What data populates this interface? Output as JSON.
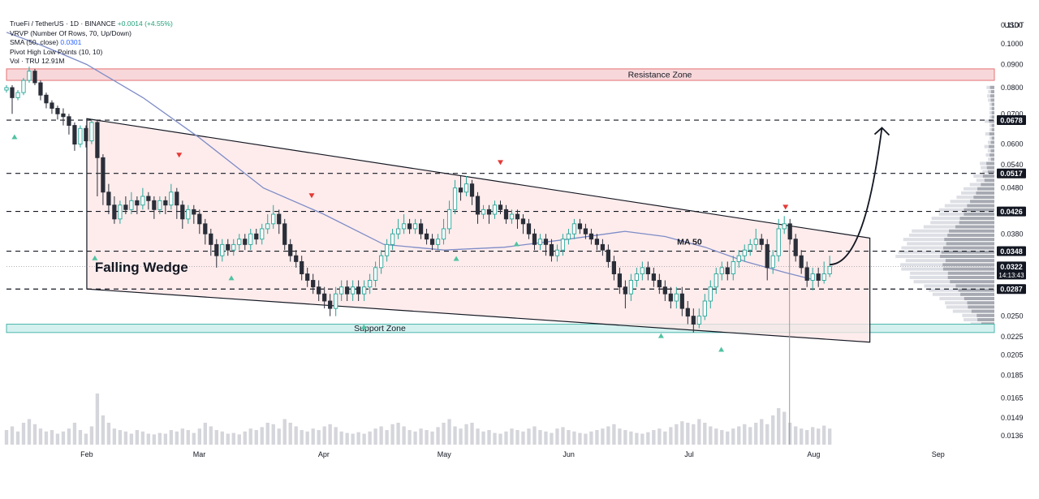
{
  "legend": {
    "symbol": "TrueFi / TetherUS · 1D · BINANCE",
    "change": "+0.0014 (+4.55%)",
    "vrvp": "VRVP (Number Of Rows, 70, Up/Down)",
    "sma_label": "SMA (50, close)",
    "sma_value": "0.0301",
    "pivot": "Pivot High Low Points (10, 10)",
    "vol_label": "Vol · TRU",
    "vol_value": "12.91M"
  },
  "colors": {
    "bull": "#26a69a",
    "bear": "#2a2e39",
    "ma": "#7e8cc7",
    "wedge_fill": "#fde6e6",
    "resistance_fill": "#f8d7da",
    "support_fill": "#d4f1ef",
    "pivot_up": "#4fc3a1",
    "pivot_down": "#e53935",
    "price_label_bg": "#131722"
  },
  "chart_data": {
    "type": "candlestick",
    "currency": "USDT",
    "y_ticks": [
      "0.1100",
      "0.1000",
      "0.0900",
      "0.0800",
      "0.0700",
      "0.0600",
      "0.0540",
      "0.0480",
      "0.0380",
      "0.0250",
      "0.0225",
      "0.0205",
      "0.0185",
      "0.0165",
      "0.0149",
      "0.0136"
    ],
    "x_ticks": [
      "Feb",
      "Mar",
      "Apr",
      "May",
      "Jun",
      "Jul",
      "Aug",
      "Sep"
    ],
    "x_tick_days": [
      31,
      59,
      90,
      120,
      151,
      181,
      212,
      243
    ],
    "x_range_days": [
      11,
      257
    ],
    "price_labels": [
      {
        "price": 0.0678,
        "text": "0.0678"
      },
      {
        "price": 0.0517,
        "text": "0.0517"
      },
      {
        "price": 0.0426,
        "text": "0.0426"
      },
      {
        "price": 0.0348,
        "text": "0.0348"
      },
      {
        "price": 0.0322,
        "text": "0.0322",
        "sub": "14:13:43",
        "current": true
      },
      {
        "price": 0.0287,
        "text": "0.0287"
      }
    ],
    "dashed_levels": [
      0.0678,
      0.0517,
      0.0426,
      0.0348,
      0.0287
    ],
    "zones": [
      {
        "label": "Resistance Zone",
        "top": 0.088,
        "bottom": 0.083
      },
      {
        "label": "Support Zone",
        "top": 0.024,
        "bottom": 0.023
      }
    ],
    "annotations": {
      "pattern": "Falling Wedge",
      "ma_label": "MA 50"
    },
    "wedge": {
      "upper_start": {
        "day": 31,
        "price": 0.0683
      },
      "upper_end": {
        "day": 226,
        "price": 0.0372
      },
      "lower_start": {
        "day": 31,
        "price": 0.0287
      },
      "lower_end": {
        "day": 226,
        "price": 0.0219
      }
    },
    "projection": {
      "start": {
        "day": 216,
        "price": 0.0325
      },
      "end": {
        "day": 229,
        "price": 0.0652
      }
    },
    "pivots": [
      {
        "day": 13,
        "price": 0.0652,
        "dir": "low"
      },
      {
        "day": 33,
        "price": 0.0352,
        "dir": "low"
      },
      {
        "day": 54,
        "price": 0.0542,
        "dir": "high"
      },
      {
        "day": 67,
        "price": 0.0318,
        "dir": "low"
      },
      {
        "day": 87,
        "price": 0.0441,
        "dir": "high"
      },
      {
        "day": 100,
        "price": 0.0248,
        "dir": "low"
      },
      {
        "day": 123,
        "price": 0.0351,
        "dir": "low"
      },
      {
        "day": 134,
        "price": 0.0522,
        "dir": "high"
      },
      {
        "day": 138,
        "price": 0.0378,
        "dir": "low"
      },
      {
        "day": 174,
        "price": 0.0237,
        "dir": "low"
      },
      {
        "day": 189,
        "price": 0.0221,
        "dir": "low"
      },
      {
        "day": 205,
        "price": 0.0416,
        "dir": "high"
      }
    ],
    "candles_open_close_high_low": [
      [
        0.079,
        0.08,
        0.081,
        0.078
      ],
      [
        0.08,
        0.076,
        0.081,
        0.07
      ],
      [
        0.076,
        0.078,
        0.079,
        0.075
      ],
      [
        0.078,
        0.083,
        0.084,
        0.077
      ],
      [
        0.083,
        0.087,
        0.089,
        0.082
      ],
      [
        0.087,
        0.082,
        0.088,
        0.081
      ],
      [
        0.082,
        0.077,
        0.083,
        0.075
      ],
      [
        0.077,
        0.074,
        0.078,
        0.072
      ],
      [
        0.074,
        0.072,
        0.075,
        0.07
      ],
      [
        0.072,
        0.07,
        0.073,
        0.068
      ],
      [
        0.07,
        0.069,
        0.072,
        0.066
      ],
      [
        0.069,
        0.066,
        0.07,
        0.063
      ],
      [
        0.066,
        0.06,
        0.067,
        0.058
      ],
      [
        0.06,
        0.065,
        0.066,
        0.059
      ],
      [
        0.065,
        0.061,
        0.066,
        0.059
      ],
      [
        0.061,
        0.067,
        0.068,
        0.06
      ],
      [
        0.067,
        0.056,
        0.068,
        0.046
      ],
      [
        0.056,
        0.047,
        0.057,
        0.044
      ],
      [
        0.047,
        0.044,
        0.049,
        0.042
      ],
      [
        0.044,
        0.041,
        0.046,
        0.04
      ],
      [
        0.041,
        0.044,
        0.045,
        0.04
      ],
      [
        0.044,
        0.043,
        0.046,
        0.042
      ],
      [
        0.043,
        0.045,
        0.047,
        0.042
      ],
      [
        0.045,
        0.044,
        0.046,
        0.042
      ],
      [
        0.044,
        0.046,
        0.048,
        0.043
      ],
      [
        0.046,
        0.045,
        0.047,
        0.043
      ],
      [
        0.045,
        0.043,
        0.046,
        0.041
      ],
      [
        0.043,
        0.045,
        0.046,
        0.042
      ],
      [
        0.045,
        0.044,
        0.046,
        0.042
      ],
      [
        0.044,
        0.047,
        0.049,
        0.043
      ],
      [
        0.047,
        0.044,
        0.048,
        0.041
      ],
      [
        0.044,
        0.041,
        0.045,
        0.039
      ],
      [
        0.041,
        0.043,
        0.044,
        0.04
      ],
      [
        0.043,
        0.042,
        0.044,
        0.04
      ],
      [
        0.042,
        0.04,
        0.043,
        0.038
      ],
      [
        0.04,
        0.038,
        0.041,
        0.036
      ],
      [
        0.038,
        0.036,
        0.039,
        0.034
      ],
      [
        0.036,
        0.034,
        0.037,
        0.032
      ],
      [
        0.034,
        0.036,
        0.037,
        0.033
      ],
      [
        0.036,
        0.035,
        0.037,
        0.034
      ],
      [
        0.035,
        0.036,
        0.037,
        0.034
      ],
      [
        0.036,
        0.037,
        0.038,
        0.035
      ],
      [
        0.037,
        0.036,
        0.038,
        0.035
      ],
      [
        0.036,
        0.038,
        0.039,
        0.035
      ],
      [
        0.038,
        0.037,
        0.039,
        0.036
      ],
      [
        0.037,
        0.039,
        0.04,
        0.036
      ],
      [
        0.039,
        0.04,
        0.042,
        0.038
      ],
      [
        0.04,
        0.042,
        0.044,
        0.039
      ],
      [
        0.042,
        0.04,
        0.043,
        0.038
      ],
      [
        0.04,
        0.036,
        0.041,
        0.035
      ],
      [
        0.036,
        0.034,
        0.037,
        0.033
      ],
      [
        0.034,
        0.033,
        0.035,
        0.032
      ],
      [
        0.033,
        0.031,
        0.034,
        0.03
      ],
      [
        0.031,
        0.03,
        0.032,
        0.029
      ],
      [
        0.03,
        0.029,
        0.031,
        0.028
      ],
      [
        0.029,
        0.028,
        0.03,
        0.027
      ],
      [
        0.028,
        0.027,
        0.029,
        0.026
      ],
      [
        0.027,
        0.026,
        0.028,
        0.025
      ],
      [
        0.026,
        0.028,
        0.029,
        0.025
      ],
      [
        0.028,
        0.029,
        0.03,
        0.027
      ],
      [
        0.029,
        0.028,
        0.03,
        0.027
      ],
      [
        0.028,
        0.029,
        0.03,
        0.027
      ],
      [
        0.029,
        0.028,
        0.03,
        0.027
      ],
      [
        0.028,
        0.029,
        0.03,
        0.027
      ],
      [
        0.029,
        0.03,
        0.031,
        0.028
      ],
      [
        0.03,
        0.032,
        0.033,
        0.029
      ],
      [
        0.032,
        0.034,
        0.035,
        0.031
      ],
      [
        0.034,
        0.036,
        0.037,
        0.033
      ],
      [
        0.036,
        0.038,
        0.039,
        0.035
      ],
      [
        0.038,
        0.039,
        0.041,
        0.037
      ],
      [
        0.039,
        0.04,
        0.042,
        0.038
      ],
      [
        0.04,
        0.039,
        0.041,
        0.038
      ],
      [
        0.039,
        0.04,
        0.041,
        0.038
      ],
      [
        0.04,
        0.038,
        0.041,
        0.037
      ],
      [
        0.038,
        0.037,
        0.039,
        0.036
      ],
      [
        0.037,
        0.036,
        0.038,
        0.035
      ],
      [
        0.036,
        0.037,
        0.038,
        0.035
      ],
      [
        0.037,
        0.039,
        0.041,
        0.036
      ],
      [
        0.039,
        0.043,
        0.045,
        0.038
      ],
      [
        0.043,
        0.048,
        0.05,
        0.042
      ],
      [
        0.048,
        0.047,
        0.051,
        0.045
      ],
      [
        0.047,
        0.049,
        0.051,
        0.046
      ],
      [
        0.049,
        0.046,
        0.05,
        0.044
      ],
      [
        0.046,
        0.042,
        0.047,
        0.04
      ],
      [
        0.042,
        0.043,
        0.044,
        0.041
      ],
      [
        0.043,
        0.042,
        0.044,
        0.04
      ],
      [
        0.042,
        0.044,
        0.045,
        0.041
      ],
      [
        0.044,
        0.043,
        0.045,
        0.042
      ],
      [
        0.043,
        0.041,
        0.044,
        0.04
      ],
      [
        0.041,
        0.042,
        0.043,
        0.04
      ],
      [
        0.042,
        0.041,
        0.043,
        0.039
      ],
      [
        0.041,
        0.04,
        0.042,
        0.038
      ],
      [
        0.04,
        0.038,
        0.041,
        0.037
      ],
      [
        0.038,
        0.036,
        0.039,
        0.035
      ],
      [
        0.036,
        0.037,
        0.038,
        0.035
      ],
      [
        0.037,
        0.036,
        0.038,
        0.034
      ],
      [
        0.036,
        0.034,
        0.037,
        0.033
      ],
      [
        0.034,
        0.035,
        0.036,
        0.033
      ],
      [
        0.035,
        0.037,
        0.038,
        0.034
      ],
      [
        0.037,
        0.038,
        0.039,
        0.036
      ],
      [
        0.038,
        0.04,
        0.041,
        0.037
      ],
      [
        0.04,
        0.039,
        0.041,
        0.038
      ],
      [
        0.039,
        0.038,
        0.04,
        0.037
      ],
      [
        0.038,
        0.037,
        0.039,
        0.036
      ],
      [
        0.037,
        0.036,
        0.038,
        0.035
      ],
      [
        0.036,
        0.035,
        0.037,
        0.034
      ],
      [
        0.035,
        0.033,
        0.036,
        0.032
      ],
      [
        0.033,
        0.031,
        0.034,
        0.03
      ],
      [
        0.031,
        0.029,
        0.032,
        0.028
      ],
      [
        0.029,
        0.028,
        0.03,
        0.026
      ],
      [
        0.028,
        0.03,
        0.031,
        0.027
      ],
      [
        0.03,
        0.031,
        0.032,
        0.029
      ],
      [
        0.031,
        0.032,
        0.033,
        0.03
      ],
      [
        0.032,
        0.031,
        0.033,
        0.03
      ],
      [
        0.031,
        0.03,
        0.032,
        0.029
      ],
      [
        0.03,
        0.029,
        0.031,
        0.028
      ],
      [
        0.029,
        0.028,
        0.03,
        0.027
      ],
      [
        0.028,
        0.027,
        0.029,
        0.026
      ],
      [
        0.027,
        0.028,
        0.029,
        0.026
      ],
      [
        0.028,
        0.026,
        0.029,
        0.025
      ],
      [
        0.026,
        0.025,
        0.027,
        0.024
      ],
      [
        0.025,
        0.024,
        0.026,
        0.023
      ],
      [
        0.024,
        0.025,
        0.026,
        0.0235
      ],
      [
        0.025,
        0.027,
        0.028,
        0.0245
      ],
      [
        0.027,
        0.029,
        0.03,
        0.026
      ],
      [
        0.029,
        0.031,
        0.032,
        0.028
      ],
      [
        0.031,
        0.032,
        0.033,
        0.03
      ],
      [
        0.032,
        0.031,
        0.033,
        0.03
      ],
      [
        0.031,
        0.033,
        0.034,
        0.03
      ],
      [
        0.033,
        0.034,
        0.035,
        0.032
      ],
      [
        0.034,
        0.035,
        0.036,
        0.033
      ],
      [
        0.035,
        0.036,
        0.037,
        0.034
      ],
      [
        0.036,
        0.037,
        0.039,
        0.035
      ],
      [
        0.037,
        0.036,
        0.038,
        0.035
      ],
      [
        0.036,
        0.032,
        0.037,
        0.03
      ],
      [
        0.032,
        0.034,
        0.035,
        0.031
      ],
      [
        0.034,
        0.039,
        0.041,
        0.033
      ],
      [
        0.039,
        0.04,
        0.0416,
        0.038
      ],
      [
        0.04,
        0.037,
        0.041,
        0.036
      ],
      [
        0.037,
        0.034,
        0.038,
        0.033
      ],
      [
        0.034,
        0.032,
        0.035,
        0.031
      ],
      [
        0.032,
        0.03,
        0.033,
        0.029
      ],
      [
        0.03,
        0.031,
        0.032,
        0.0285
      ],
      [
        0.031,
        0.03,
        0.032,
        0.029
      ],
      [
        0.03,
        0.031,
        0.033,
        0.0295
      ],
      [
        0.031,
        0.0322,
        0.034,
        0.0305
      ]
    ],
    "sma50": [
      [
        11,
        0.106
      ],
      [
        20,
        0.099
      ],
      [
        31,
        0.09
      ],
      [
        45,
        0.076
      ],
      [
        59,
        0.062
      ],
      [
        75,
        0.048
      ],
      [
        90,
        0.042
      ],
      [
        105,
        0.036
      ],
      [
        120,
        0.035
      ],
      [
        135,
        0.0355
      ],
      [
        151,
        0.037
      ],
      [
        165,
        0.0385
      ],
      [
        175,
        0.0375
      ],
      [
        185,
        0.0355
      ],
      [
        195,
        0.033
      ],
      [
        205,
        0.0312
      ],
      [
        212,
        0.0301
      ]
    ],
    "volume_relative": [
      0.2,
      0.25,
      0.18,
      0.3,
      0.35,
      0.28,
      0.22,
      0.18,
      0.2,
      0.15,
      0.18,
      0.22,
      0.3,
      0.2,
      0.15,
      0.25,
      0.7,
      0.4,
      0.3,
      0.22,
      0.2,
      0.18,
      0.15,
      0.2,
      0.18,
      0.15,
      0.14,
      0.16,
      0.15,
      0.2,
      0.18,
      0.22,
      0.2,
      0.16,
      0.22,
      0.3,
      0.25,
      0.2,
      0.18,
      0.15,
      0.16,
      0.14,
      0.18,
      0.22,
      0.2,
      0.24,
      0.3,
      0.28,
      0.22,
      0.35,
      0.3,
      0.25,
      0.2,
      0.18,
      0.22,
      0.2,
      0.25,
      0.28,
      0.24,
      0.18,
      0.16,
      0.15,
      0.17,
      0.15,
      0.18,
      0.22,
      0.25,
      0.2,
      0.28,
      0.3,
      0.25,
      0.2,
      0.18,
      0.22,
      0.2,
      0.18,
      0.24,
      0.3,
      0.35,
      0.25,
      0.22,
      0.28,
      0.3,
      0.22,
      0.18,
      0.2,
      0.16,
      0.15,
      0.18,
      0.22,
      0.2,
      0.18,
      0.22,
      0.25,
      0.2,
      0.18,
      0.16,
      0.22,
      0.24,
      0.2,
      0.18,
      0.16,
      0.15,
      0.18,
      0.2,
      0.22,
      0.25,
      0.28,
      0.22,
      0.2,
      0.18,
      0.16,
      0.15,
      0.17,
      0.2,
      0.22,
      0.18,
      0.24,
      0.28,
      0.32,
      0.3,
      0.28,
      0.35,
      0.3,
      0.25,
      0.22,
      0.2,
      0.18,
      0.22,
      0.25,
      0.28,
      0.24,
      0.3,
      0.35,
      0.28,
      0.4,
      0.5,
      0.45,
      0.3,
      0.25,
      0.22,
      0.2,
      0.24,
      0.22,
      0.26,
      0.22
    ]
  }
}
